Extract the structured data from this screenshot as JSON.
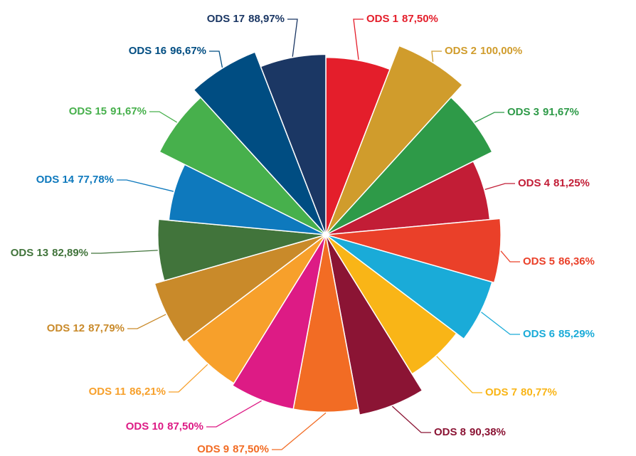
{
  "chart_data": {
    "type": "polar_area",
    "categories": [
      "ODS 1",
      "ODS 2",
      "ODS 3",
      "ODS 4",
      "ODS 5",
      "ODS 6",
      "ODS 7",
      "ODS 8",
      "ODS 9",
      "ODS 10",
      "ODS 11",
      "ODS 12",
      "ODS 13",
      "ODS 14",
      "ODS 15",
      "ODS 16",
      "ODS 17"
    ],
    "values": [
      87.5,
      100,
      91.67,
      81.25,
      86.36,
      85.29,
      80.77,
      90.38,
      87.5,
      87.5,
      86.21,
      87.79,
      82.89,
      77.78,
      91.67,
      96.67,
      88.97
    ],
    "value_labels": [
      "87,50%",
      "100,00%",
      "91,67%",
      "81,25%",
      "86,36%",
      "85,29%",
      "80,77%",
      "90,38%",
      "87,50%",
      "87,50%",
      "86,21%",
      "87,79%",
      "82,89%",
      "77,78%",
      "91,67%",
      "96,67%",
      "88,97%"
    ],
    "colors": [
      "#e41e2b",
      "#d09c2c",
      "#2e9a48",
      "#c21d36",
      "#ea4029",
      "#1aabd8",
      "#f9b517",
      "#8b1434",
      "#f26c24",
      "#dd1b85",
      "#f7a02b",
      "#c98a2a",
      "#41743b",
      "#0e79bd",
      "#47b04c",
      "#004d82",
      "#1b3764"
    ]
  }
}
